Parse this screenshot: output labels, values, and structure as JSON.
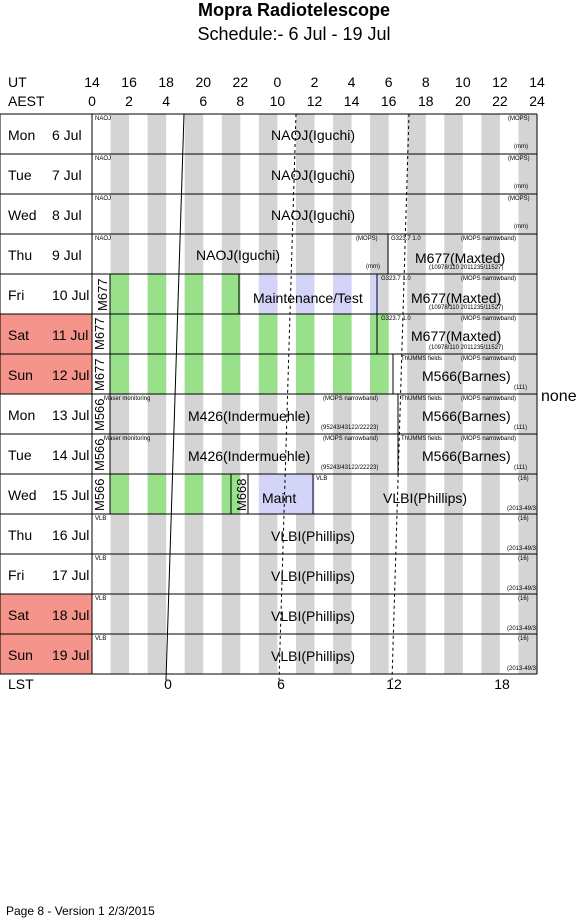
{
  "title": "Mopra Radiotelescope",
  "subtitle": "Schedule:- 6  Jul - 19 Jul",
  "ut_label": "UT",
  "aest_label": "AEST",
  "lst_label": "LST",
  "ut_hours": [
    "14",
    "16",
    "18",
    "20",
    "22",
    "0",
    "2",
    "4",
    "6",
    "8",
    "10",
    "12",
    "14"
  ],
  "aest_hours": [
    "0",
    "2",
    "4",
    "6",
    "8",
    "10",
    "12",
    "14",
    "16",
    "18",
    "20",
    "22",
    "24"
  ],
  "lst_ticks": [
    "0",
    "6",
    "12",
    "18"
  ],
  "none_label": "none",
  "footer": "Page 8 - Version 1  2/3/2015",
  "colors": {
    "weekend": "#f4948a",
    "stripe": "#d4d4d4",
    "green": "#98e08a",
    "blue": "#d4d4f8"
  },
  "days": [
    {
      "dow": "Mon",
      "date": "6  Jul",
      "weekend": false
    },
    {
      "dow": "Tue",
      "date": "7  Jul",
      "weekend": false
    },
    {
      "dow": "Wed",
      "date": "8  Jul",
      "weekend": false
    },
    {
      "dow": "Thu",
      "date": "9  Jul",
      "weekend": false
    },
    {
      "dow": "Fri",
      "date": "10 Jul",
      "weekend": false
    },
    {
      "dow": "Sat",
      "date": "11 Jul",
      "weekend": true
    },
    {
      "dow": "Sun",
      "date": "12 Jul",
      "weekend": true
    },
    {
      "dow": "Mon",
      "date": "13 Jul",
      "weekend": false
    },
    {
      "dow": "Tue",
      "date": "14 Jul",
      "weekend": false
    },
    {
      "dow": "Wed",
      "date": "15 Jul",
      "weekend": false
    },
    {
      "dow": "Thu",
      "date": "16 Jul",
      "weekend": false
    },
    {
      "dow": "Fri",
      "date": "17 Jul",
      "weekend": false
    },
    {
      "dow": "Sat",
      "date": "18 Jul",
      "weekend": true
    },
    {
      "dow": "Sun",
      "date": "19 Jul",
      "weekend": true
    }
  ],
  "row_labels": {
    "naoj": "NAOJ(Iguchi)",
    "naoj_small": "NAOJ",
    "mops": "(MOPS)",
    "mmm": "(mm)",
    "maint_test": "Maintenance/Test",
    "m677": "M677",
    "m677_maxted": "M677(Maxted)",
    "g323": "G323.7 1.0",
    "mops_narrow": "(MOPS narrowband)",
    "m677_coords": "(10978/110 2011235/11527)",
    "m566": "M566",
    "m566_barnes": "M566(Barnes)",
    "thumms": "ThUMMS fields",
    "m566_code": "(111)",
    "maser": "Maser monitoring",
    "m426": "M426(Indermuehle)",
    "m426_coords": "(95243/43122/22223)",
    "m668": "M668",
    "maint": "Maint",
    "vlbi": "VLBI(Phillips)",
    "vlb": "VLB",
    "vlb_code": "(16)",
    "vlb_coords": "(2013-49/3)"
  }
}
